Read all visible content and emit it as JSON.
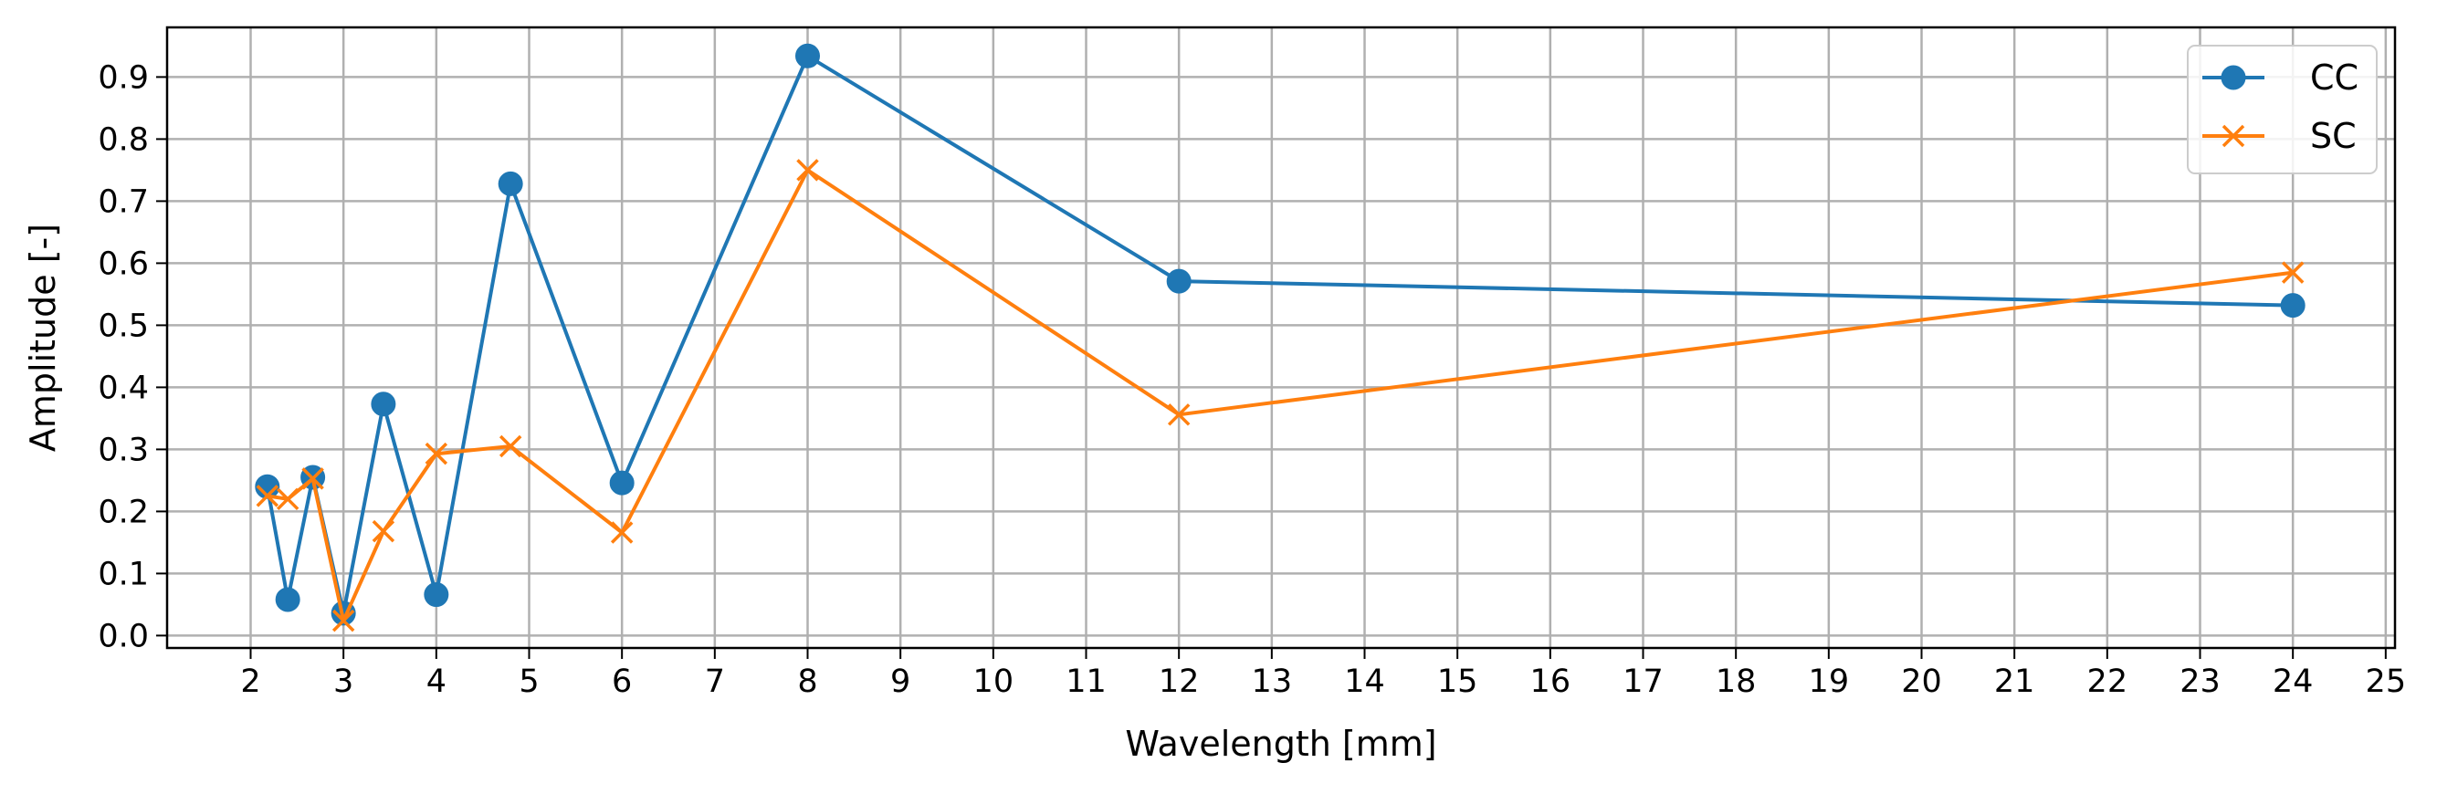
{
  "chart_data": {
    "type": "line",
    "xlabel": "Wavelength [mm]",
    "ylabel": "Amplitude [-]",
    "xlim": [
      1.1,
      25.1
    ],
    "ylim": [
      -0.02,
      0.98
    ],
    "xticks": [
      2,
      3,
      4,
      5,
      6,
      7,
      8,
      9,
      10,
      11,
      12,
      13,
      14,
      15,
      16,
      17,
      18,
      19,
      20,
      21,
      22,
      23,
      24,
      25
    ],
    "yticks": [
      0.0,
      0.1,
      0.2,
      0.3,
      0.4,
      0.5,
      0.6,
      0.7,
      0.8,
      0.9
    ],
    "ytick_labels": [
      "0.0",
      "0.1",
      "0.2",
      "0.3",
      "0.4",
      "0.5",
      "0.6",
      "0.7",
      "0.8",
      "0.9"
    ],
    "grid": true,
    "legend_position": "top-right",
    "series": [
      {
        "name": "CC",
        "color": "#1f77b4",
        "marker": "circle",
        "x": [
          2.18,
          2.4,
          2.67,
          3.0,
          3.43,
          4.0,
          4.8,
          6.0,
          8.0,
          12.0,
          24.0
        ],
        "y": [
          0.24,
          0.058,
          0.255,
          0.036,
          0.373,
          0.066,
          0.728,
          0.246,
          0.934,
          0.571,
          0.532
        ]
      },
      {
        "name": "SC",
        "color": "#ff7f0e",
        "marker": "x",
        "x": [
          2.18,
          2.4,
          2.67,
          3.0,
          3.43,
          4.0,
          4.8,
          6.0,
          8.0,
          12.0,
          24.0
        ],
        "y": [
          0.225,
          0.22,
          0.253,
          0.024,
          0.168,
          0.293,
          0.305,
          0.166,
          0.75,
          0.356,
          0.585
        ]
      }
    ]
  }
}
